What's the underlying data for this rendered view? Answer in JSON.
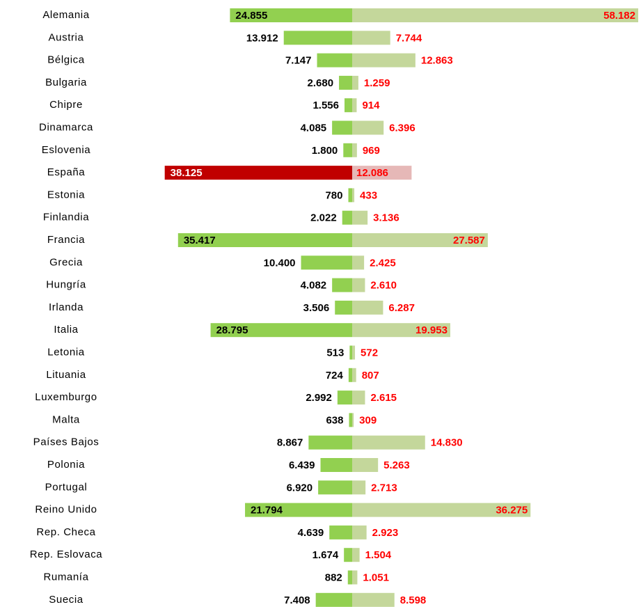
{
  "chart_data": {
    "type": "diverging-bar",
    "categories": [
      "Alemania",
      "Austria",
      "Bélgica",
      "Bulgaria",
      "Chipre",
      "Dinamarca",
      "Eslovenia",
      "España",
      "Estonia",
      "Finlandia",
      "Francia",
      "Grecia",
      "Hungría",
      "Irlanda",
      "Italia",
      "Letonia",
      "Lituania",
      "Luxemburgo",
      "Malta",
      "Países Bajos",
      "Polonia",
      "Portugal",
      "Reino Unido",
      "Rep. Checa",
      "Rep. Eslovaca",
      "Rumanía",
      "Suecia"
    ],
    "series": [
      {
        "side": "left",
        "label_color": "#000000",
        "values": [
          24855,
          13912,
          7147,
          2680,
          1556,
          4085,
          1800,
          38125,
          780,
          2022,
          35417,
          10400,
          4082,
          3506,
          28795,
          513,
          724,
          2992,
          638,
          8867,
          6439,
          6920,
          21794,
          4639,
          1674,
          882,
          7408
        ],
        "value_labels": [
          "24.855",
          "13.912",
          "7.147",
          "2.680",
          "1.556",
          "4.085",
          "1.800",
          "38.125",
          "780",
          "2.022",
          "35.417",
          "10.400",
          "4.082",
          "3.506",
          "28.795",
          "513",
          "724",
          "2.992",
          "638",
          "8.867",
          "6.439",
          "6.920",
          "21.794",
          "4.639",
          "1.674",
          "882",
          "7.408"
        ],
        "colors": [
          "#92d050",
          "#92d050",
          "#92d050",
          "#92d050",
          "#92d050",
          "#92d050",
          "#92d050",
          "#c00000",
          "#92d050",
          "#92d050",
          "#92d050",
          "#92d050",
          "#92d050",
          "#92d050",
          "#92d050",
          "#92d050",
          "#92d050",
          "#92d050",
          "#92d050",
          "#92d050",
          "#92d050",
          "#92d050",
          "#92d050",
          "#92d050",
          "#92d050",
          "#92d050",
          "#92d050"
        ]
      },
      {
        "side": "right",
        "label_color": "#ff0000",
        "values": [
          58182,
          7744,
          12863,
          1259,
          914,
          6396,
          969,
          12086,
          433,
          3136,
          27587,
          2425,
          2610,
          6287,
          19953,
          572,
          807,
          2615,
          309,
          14830,
          5263,
          2713,
          36275,
          2923,
          1504,
          1051,
          8598
        ],
        "value_labels": [
          "58.182",
          "7.744",
          "12.863",
          "1.259",
          "914",
          "6.396",
          "969",
          "12.086",
          "433",
          "3.136",
          "27.587",
          "2.425",
          "2.610",
          "6.287",
          "19.953",
          "572",
          "807",
          "2.615",
          "309",
          "14.830",
          "5.263",
          "2.713",
          "36.275",
          "2.923",
          "1.504",
          "1.051",
          "8.598"
        ],
        "colors": [
          "#c4d79b",
          "#c4d79b",
          "#c4d79b",
          "#c4d79b",
          "#c4d79b",
          "#c4d79b",
          "#c4d79b",
          "#e6b8b7",
          "#c4d79b",
          "#c4d79b",
          "#c4d79b",
          "#c4d79b",
          "#c4d79b",
          "#c4d79b",
          "#c4d79b",
          "#c4d79b",
          "#c4d79b",
          "#c4d79b",
          "#c4d79b",
          "#c4d79b",
          "#c4d79b",
          "#c4d79b",
          "#c4d79b",
          "#c4d79b",
          "#c4d79b",
          "#c4d79b",
          "#c4d79b"
        ]
      }
    ]
  }
}
